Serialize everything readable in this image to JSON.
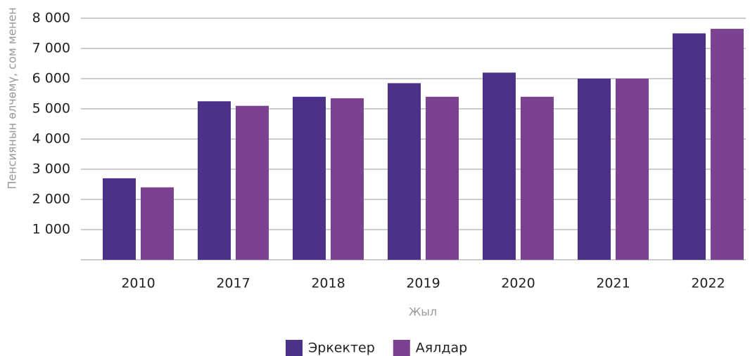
{
  "chart_data": {
    "type": "bar",
    "xlabel": "Жыл",
    "ylabel": "Пенсиянын өлчөмү, сом менен",
    "categories": [
      "2010",
      "2017",
      "2018",
      "2019",
      "2020",
      "2021",
      "2022"
    ],
    "series": [
      {
        "name": "Эркектер",
        "color": "#4b318a",
        "values": [
          2700,
          5250,
          5400,
          5850,
          6200,
          6000,
          7500
        ]
      },
      {
        "name": "Аялдар",
        "color": "#7b4291",
        "values": [
          2400,
          5100,
          5350,
          5400,
          5400,
          6000,
          7650
        ]
      }
    ],
    "ylim": [
      0,
      8000
    ],
    "yticks": [
      {
        "value": 1000,
        "label": "1 000"
      },
      {
        "value": 2000,
        "label": "2 000"
      },
      {
        "value": 3000,
        "label": "3 000"
      },
      {
        "value": 4000,
        "label": "4 000"
      },
      {
        "value": 5000,
        "label": "5 000"
      },
      {
        "value": 6000,
        "label": "6 000"
      },
      {
        "value": 7000,
        "label": "7 000"
      },
      {
        "value": 8000,
        "label": "8 000"
      }
    ],
    "grid": true,
    "legend": "bottom"
  }
}
